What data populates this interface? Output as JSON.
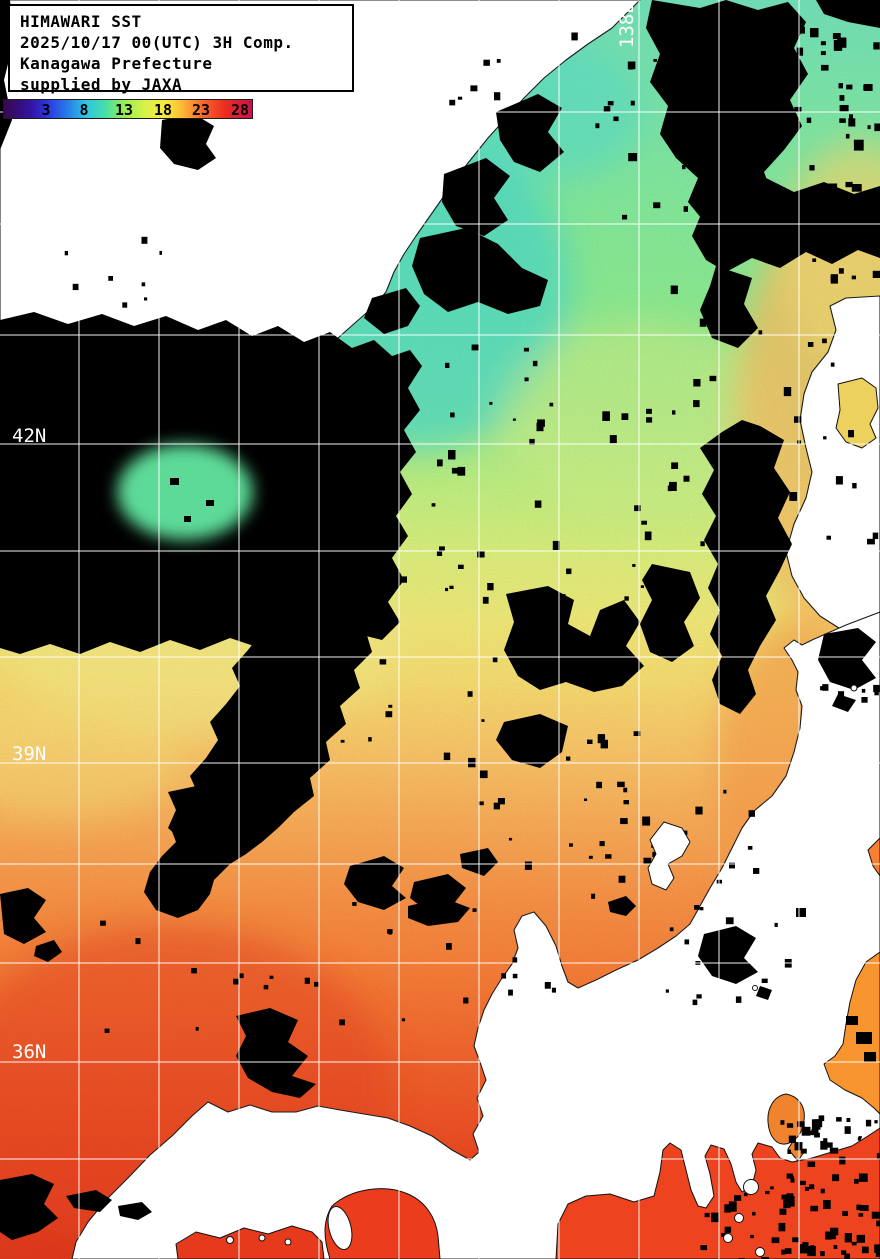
{
  "product_header": {
    "line1": "HIMAWARI SST",
    "line2": "2025/10/17 00(UTC) 3H Comp.",
    "line3": "Kanagawa Prefecture",
    "line4": "supplied by JAXA"
  },
  "colorbar": {
    "tick_labels": [
      "3",
      "8",
      "13",
      "18",
      "23",
      "28"
    ],
    "gradient": [
      "#38084e",
      "#3214a0",
      "#2b35e0",
      "#2877e6",
      "#2fc3e2",
      "#46e0a6",
      "#9dee4e",
      "#d9f24a",
      "#f8e83e",
      "#fcc136",
      "#f8602a",
      "#ea2e20",
      "#d5173c",
      "#cc1048"
    ]
  },
  "grid": {
    "latitude_labels": [
      {
        "text": "42N"
      },
      {
        "text": "39N"
      },
      {
        "text": "36N"
      }
    ],
    "longitude_labels": [
      {
        "text": "138E"
      }
    ]
  },
  "map_colors": {
    "land": "#ffffff",
    "cloud_or_missing": "#000000",
    "gridline": "#ffffff",
    "sea_cold": "#74e3bb",
    "sea_warm": "#e33b1e"
  }
}
